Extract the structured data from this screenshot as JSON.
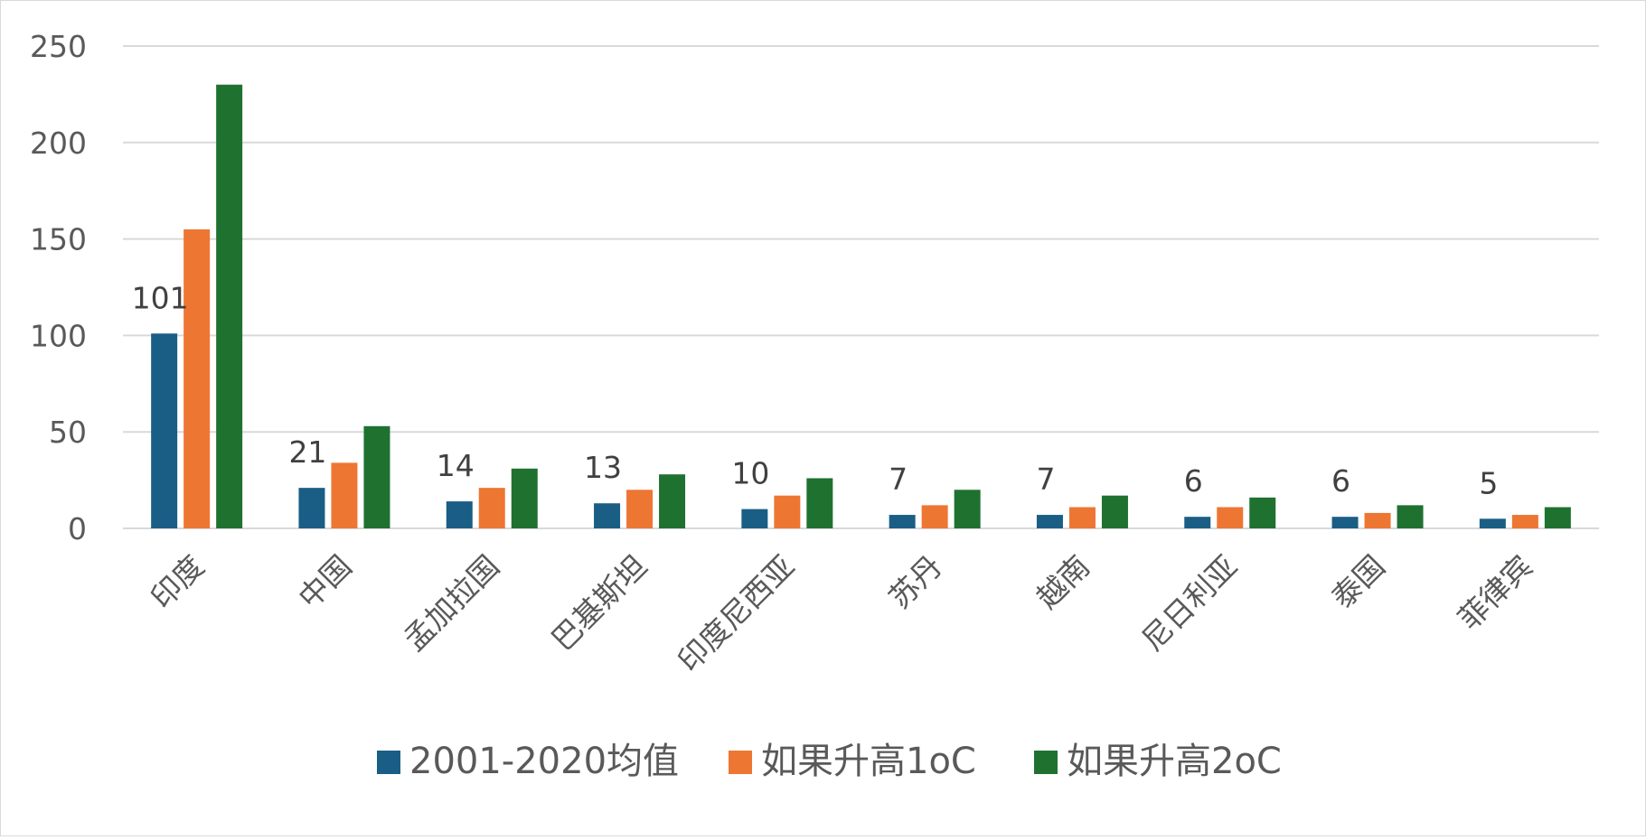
{
  "chart_data": {
    "type": "bar",
    "title": "",
    "xlabel": "",
    "ylabel": "",
    "ylim": [
      0,
      250
    ],
    "yticks": [
      0,
      50,
      100,
      150,
      200,
      250
    ],
    "grid": true,
    "legend_position": "bottom",
    "categories": [
      "印度",
      "中国",
      "孟加拉国",
      "巴基斯坦",
      "印度尼西亚",
      "苏丹",
      "越南",
      "尼日利亚",
      "泰国",
      "菲律宾"
    ],
    "series": [
      {
        "name": "2001-2020均值",
        "color": "#1a5e85",
        "values": [
          101,
          21,
          14,
          13,
          10,
          7,
          7,
          6,
          6,
          5
        ],
        "show_labels": true
      },
      {
        "name": "如果升高1oC",
        "color": "#ed7633",
        "values": [
          155,
          34,
          21,
          20,
          17,
          12,
          11,
          11,
          8,
          7
        ],
        "show_labels": false
      },
      {
        "name": "如果升高2oC",
        "color": "#1f7130",
        "values": [
          230,
          53,
          31,
          28,
          26,
          20,
          17,
          16,
          12,
          11
        ],
        "show_labels": false
      }
    ]
  }
}
